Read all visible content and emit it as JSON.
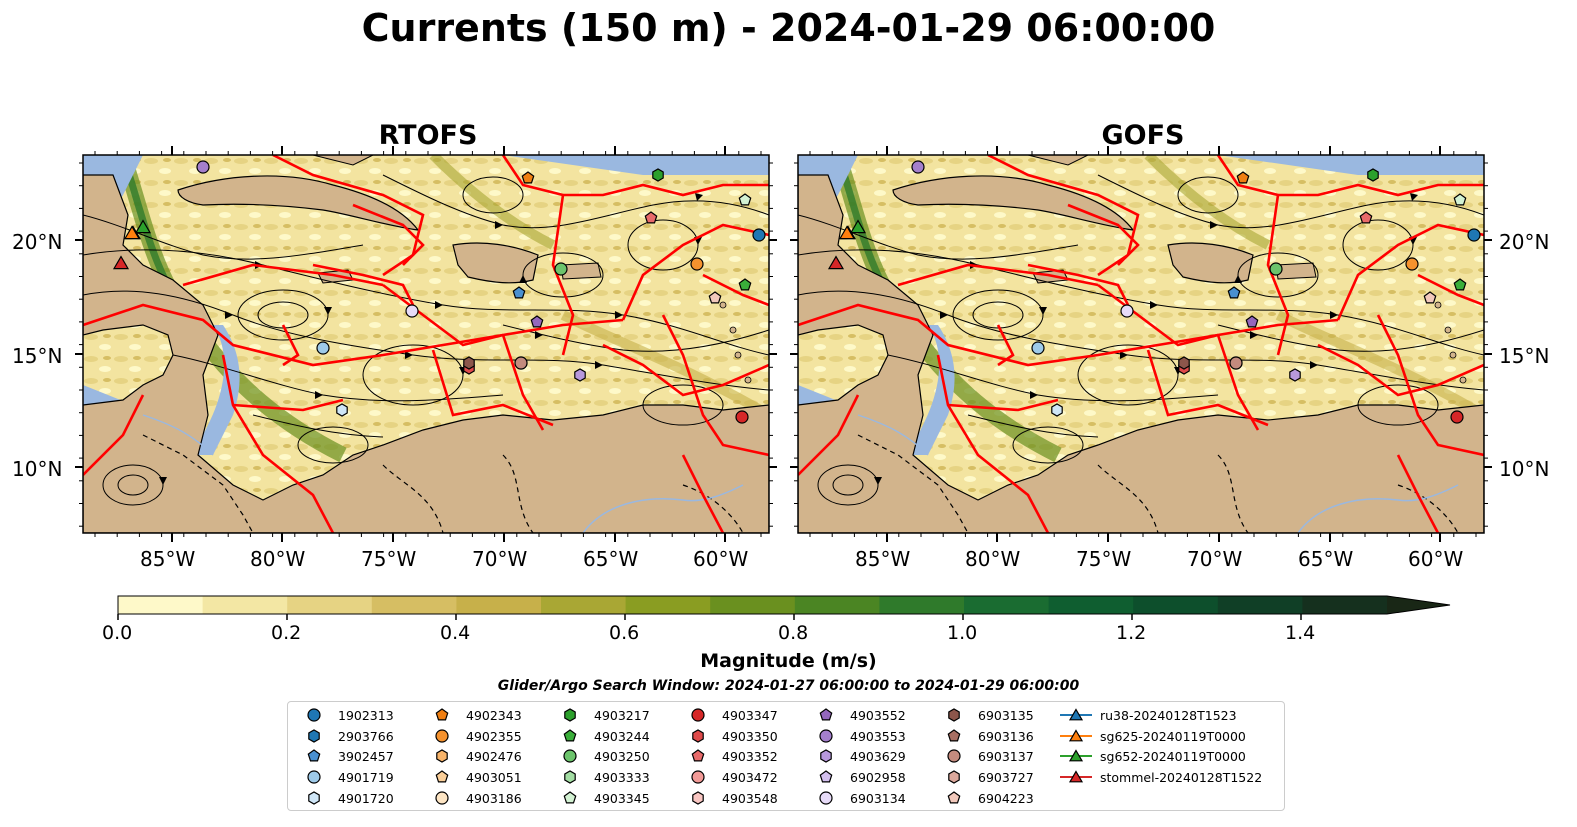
{
  "title": "Currents (150 m) - 2024-01-29 06:00:00",
  "panels": [
    {
      "title": "RTOFS"
    },
    {
      "title": "GOFS"
    }
  ],
  "axes": {
    "lat_labels": [
      "20°N",
      "15°N",
      "10°N"
    ],
    "lon_labels": [
      "85°W",
      "80°W",
      "75°W",
      "70°W",
      "65°W",
      "60°W"
    ]
  },
  "colorbar": {
    "label": "Magnitude (m/s)",
    "ticks": [
      "0.0",
      "0.2",
      "0.4",
      "0.6",
      "0.8",
      "1.0",
      "1.2",
      "1.4"
    ],
    "colors": [
      "#fef9c9",
      "#f3e7a4",
      "#e6d383",
      "#d6be63",
      "#c7b04a",
      "#a9a734",
      "#8a9d22",
      "#6a901f",
      "#4b8523",
      "#2f7a2b",
      "#1a6c31",
      "#0f5e30",
      "#0d4f2c",
      "#103f26",
      "#15301e",
      "#192716"
    ]
  },
  "search_window": "Glider/Argo Search Window: 2024-01-27 06:00:00 to 2024-01-29 06:00:00",
  "legend": {
    "columns": [
      [
        {
          "label": "1902313",
          "marker": "circle",
          "color": "#1f77b4"
        },
        {
          "label": "2903766",
          "marker": "hexagon",
          "color": "#1f77b4"
        },
        {
          "label": "3902457",
          "marker": "pentagon",
          "color": "#4a90d0"
        },
        {
          "label": "4901719",
          "marker": "circle",
          "color": "#9ecae9"
        },
        {
          "label": "4901720",
          "marker": "hexagon",
          "color": "#cfe6f7"
        }
      ],
      [
        {
          "label": "4902343",
          "marker": "pentagon",
          "color": "#f07f12"
        },
        {
          "label": "4902355",
          "marker": "circle",
          "color": "#f5922e"
        },
        {
          "label": "4902476",
          "marker": "hexagon",
          "color": "#f8b46a"
        },
        {
          "label": "4903051",
          "marker": "pentagon",
          "color": "#fbcf99"
        },
        {
          "label": "4903186",
          "marker": "circle",
          "color": "#fde5c4"
        }
      ],
      [
        {
          "label": "4903217",
          "marker": "hexagon",
          "color": "#2ca02c"
        },
        {
          "label": "4903244",
          "marker": "pentagon",
          "color": "#3aae3a"
        },
        {
          "label": "4903250",
          "marker": "circle",
          "color": "#6cc46c"
        },
        {
          "label": "4903333",
          "marker": "hexagon",
          "color": "#a3dda3"
        },
        {
          "label": "4903345",
          "marker": "pentagon",
          "color": "#d3f2d3"
        }
      ],
      [
        {
          "label": "4903347",
          "marker": "circle",
          "color": "#d62728"
        },
        {
          "label": "4903350",
          "marker": "hexagon",
          "color": "#df4a4a"
        },
        {
          "label": "4903352",
          "marker": "pentagon",
          "color": "#e86a6a"
        },
        {
          "label": "4903472",
          "marker": "circle",
          "color": "#f29a97"
        },
        {
          "label": "4903548",
          "marker": "hexagon",
          "color": "#f9c6c2"
        }
      ],
      [
        {
          "label": "4903552",
          "marker": "pentagon",
          "color": "#9467bd"
        },
        {
          "label": "4903553",
          "marker": "circle",
          "color": "#a47fcc"
        },
        {
          "label": "4903629",
          "marker": "hexagon",
          "color": "#b899dc"
        },
        {
          "label": "6902958",
          "marker": "pentagon",
          "color": "#d3bfee"
        },
        {
          "label": "6903134",
          "marker": "circle",
          "color": "#e7dbf8"
        }
      ],
      [
        {
          "label": "6903135",
          "marker": "hexagon",
          "color": "#8c564b"
        },
        {
          "label": "6903136",
          "marker": "pentagon",
          "color": "#a86f63"
        },
        {
          "label": "6903137",
          "marker": "circle",
          "color": "#c48b7e"
        },
        {
          "label": "6903727",
          "marker": "hexagon",
          "color": "#dca89c"
        },
        {
          "label": "6904223",
          "marker": "pentagon",
          "color": "#f2c9bc"
        }
      ],
      [
        {
          "label": "ru38-20240128T1523",
          "marker": "triangle",
          "color": "#1f77b4"
        },
        {
          "label": "sg625-20240119T0000",
          "marker": "triangle",
          "color": "#ff7f0e"
        },
        {
          "label": "sg652-20240119T0000",
          "marker": "triangle",
          "color": "#2ca02c"
        },
        {
          "label": "stommel-20240128T1522",
          "marker": "triangle",
          "color": "#d62728"
        }
      ]
    ]
  },
  "map_colors": {
    "land": "#d2b48c",
    "water_shallow": "#9ab8e0",
    "eez": "#ff0000",
    "streamline": "#000000"
  }
}
